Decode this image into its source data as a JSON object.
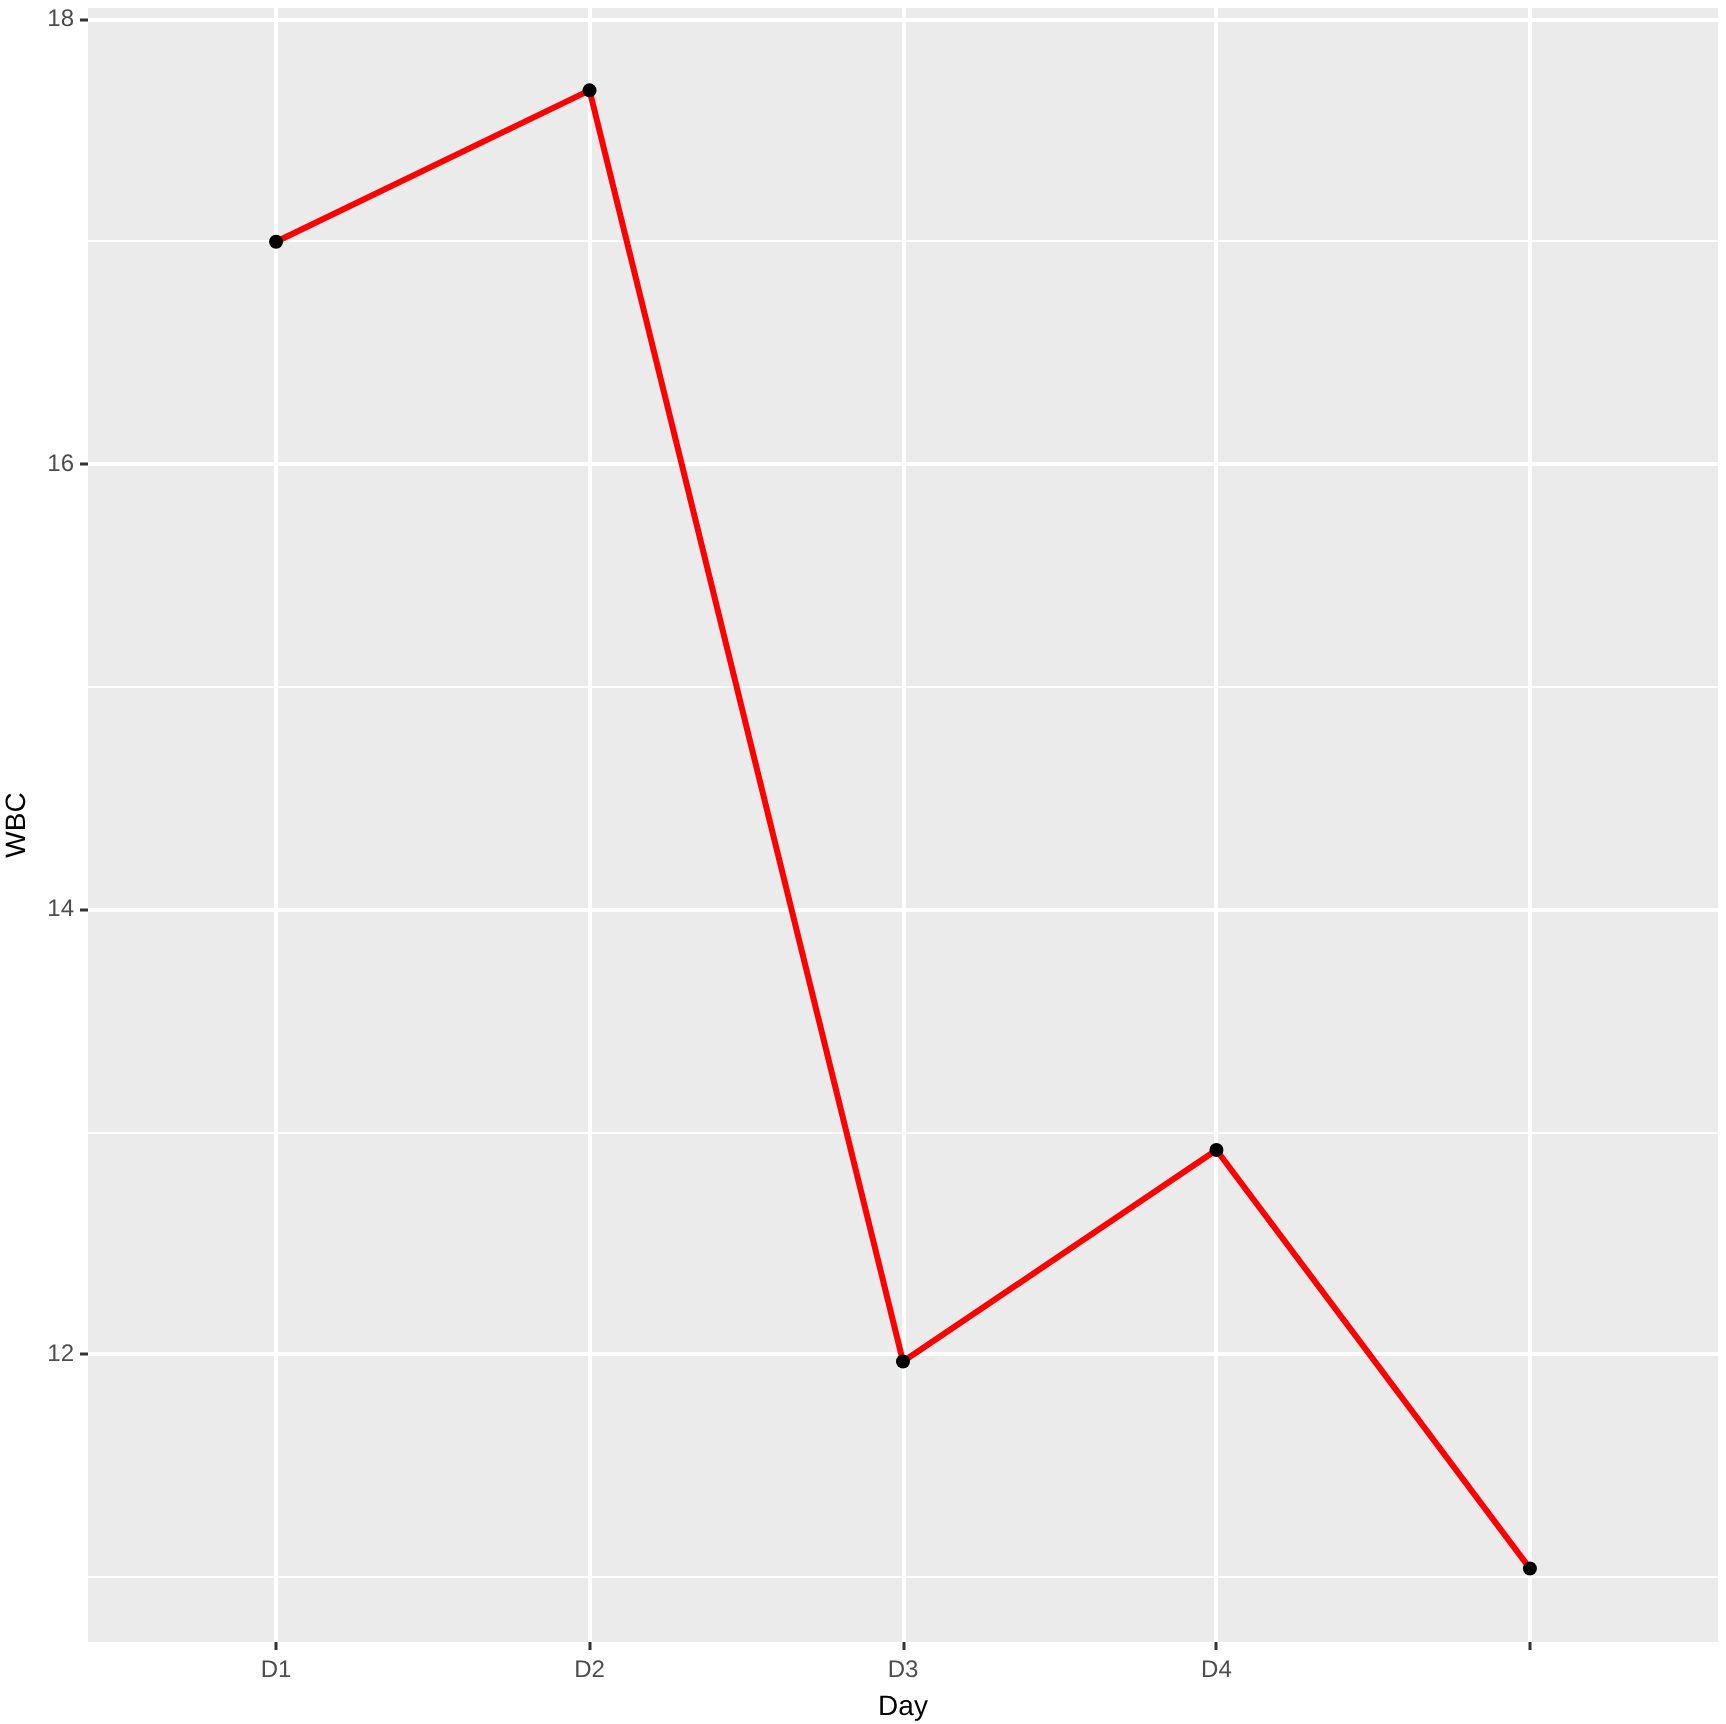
{
  "chart_data": {
    "type": "line",
    "xlabel": "Day",
    "ylabel": "WBC",
    "categories": [
      "D1",
      "D2",
      "D3",
      "D4",
      null
    ],
    "values": [
      17.0,
      17.68,
      11.97,
      12.92,
      11.04
    ],
    "color": "#ff0000",
    "ylim": [
      10.71,
      18.05
    ],
    "yticks": [
      {
        "value": 11,
        "label": null
      },
      12,
      {
        "value": 13,
        "label": null
      },
      14,
      {
        "value": 15,
        "label": null
      },
      16,
      {
        "value": 17,
        "label": null
      },
      18
    ],
    "grid": true,
    "marker": "circle",
    "line_style": "solid"
  }
}
